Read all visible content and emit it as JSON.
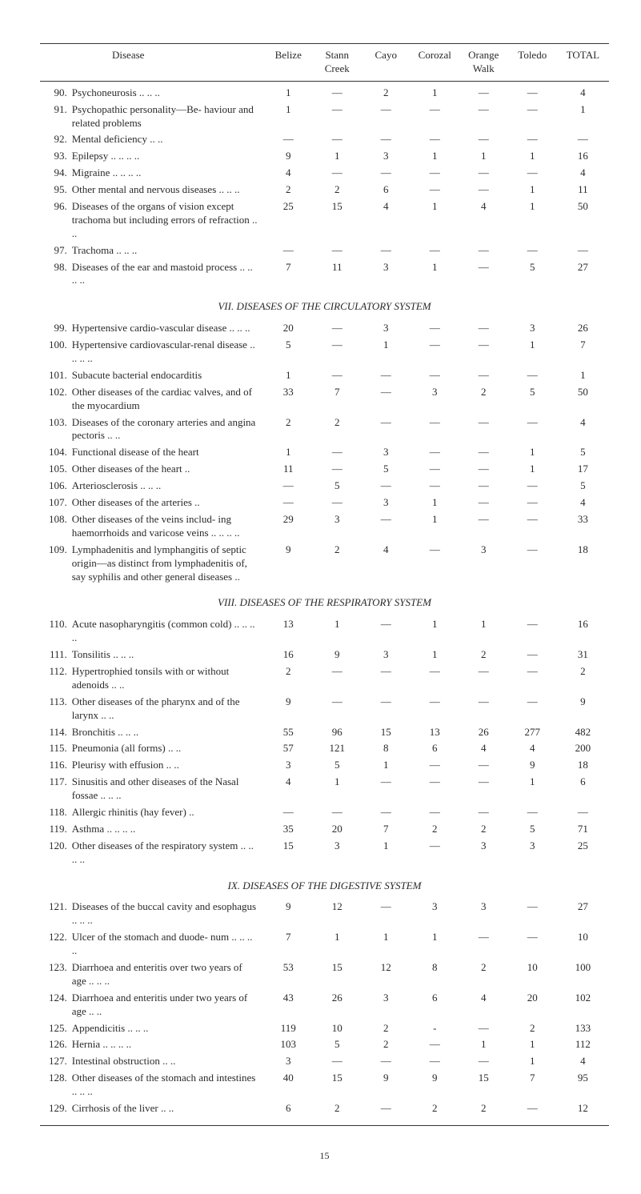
{
  "columns": [
    "Disease",
    "Belize",
    "Stann Creek",
    "Cayo",
    "Corozal",
    "Orange Walk",
    "Toledo",
    "TOTAL"
  ],
  "sections": [
    {
      "title": null,
      "rows": [
        {
          "n": "90.",
          "name": "Psychoneurosis ..  ..  ..",
          "v": [
            "1",
            "—",
            "2",
            "1",
            "—",
            "—",
            "4"
          ]
        },
        {
          "n": "91.",
          "name": "Psychopathic personality—Be- haviour and related problems",
          "v": [
            "1",
            "—",
            "—",
            "—",
            "—",
            "—",
            "1"
          ]
        },
        {
          "n": "92.",
          "name": "Mental deficiency   ..  ..",
          "v": [
            "—",
            "—",
            "—",
            "—",
            "—",
            "—",
            "—"
          ]
        },
        {
          "n": "93.",
          "name": "Epilepsy ..  ..  ..  ..",
          "v": [
            "9",
            "1",
            "3",
            "1",
            "1",
            "1",
            "16"
          ]
        },
        {
          "n": "94.",
          "name": "Migraine ..  ..  ..  ..",
          "v": [
            "4",
            "—",
            "—",
            "—",
            "—",
            "—",
            "4"
          ]
        },
        {
          "n": "95.",
          "name": "Other mental and nervous diseases    ..  ..  ..",
          "v": [
            "2",
            "2",
            "6",
            "—",
            "—",
            "1",
            "11"
          ]
        },
        {
          "n": "96.",
          "name": "Diseases of the organs of vision except trachoma but including errors of refraction  ..  ..",
          "v": [
            "25",
            "15",
            "4",
            "1",
            "4",
            "1",
            "50"
          ]
        },
        {
          "n": "97.",
          "name": "Trachoma    ..  ..  ..",
          "v": [
            "—",
            "—",
            "—",
            "—",
            "—",
            "—",
            "—"
          ]
        },
        {
          "n": "98.",
          "name": "Diseases of the ear and mastoid process ..  ..  ..  ..",
          "v": [
            "7",
            "11",
            "3",
            "1",
            "—",
            "5",
            "27"
          ]
        }
      ]
    },
    {
      "title": "VII. DISEASES OF THE CIRCULATORY SYSTEM",
      "rows": [
        {
          "n": "99.",
          "name": "Hypertensive cardio-vascular disease    ..  ..  ..",
          "v": [
            "20",
            "—",
            "3",
            "—",
            "—",
            "3",
            "26"
          ]
        },
        {
          "n": "100.",
          "name": "Hypertensive cardiovascular-renal disease ..  ..  ..  ..",
          "v": [
            "5",
            "—",
            "1",
            "—",
            "—",
            "1",
            "7"
          ]
        },
        {
          "n": "101.",
          "name": "Subacute bacterial endocarditis",
          "v": [
            "1",
            "—",
            "—",
            "—",
            "—",
            "—",
            "1"
          ]
        },
        {
          "n": "102.",
          "name": "Other diseases of the cardiac valves, and of the myocardium",
          "v": [
            "33",
            "7",
            "—",
            "3",
            "2",
            "5",
            "50"
          ]
        },
        {
          "n": "103.",
          "name": "Diseases of the coronary arteries and angina pectoris  ..  ..",
          "v": [
            "2",
            "2",
            "—",
            "—",
            "—",
            "—",
            "4"
          ]
        },
        {
          "n": "104.",
          "name": "Functional disease of the heart",
          "v": [
            "1",
            "—",
            "3",
            "—",
            "—",
            "1",
            "5"
          ]
        },
        {
          "n": "105.",
          "name": "Other diseases of the heart  ..",
          "v": [
            "11",
            "—",
            "5",
            "—",
            "—",
            "1",
            "17"
          ]
        },
        {
          "n": "106.",
          "name": "Arteriosclerosis ..  ..  ..",
          "v": [
            "—",
            "5",
            "—",
            "—",
            "—",
            "—",
            "5"
          ]
        },
        {
          "n": "107.",
          "name": "Other diseases of the arteries ..",
          "v": [
            "—",
            "—",
            "3",
            "1",
            "—",
            "—",
            "4"
          ]
        },
        {
          "n": "108.",
          "name": "Other diseases of the veins includ- ing haemorrhoids and varicose veins  ..  ..  ..  ..",
          "v": [
            "29",
            "3",
            "—",
            "1",
            "—",
            "—",
            "33"
          ]
        },
        {
          "n": "109.",
          "name": "Lymphadenitis and lymphangitis of septic origin—as distinct from lymphadenitis of, say syphilis and other general diseases  ..",
          "v": [
            "9",
            "2",
            "4",
            "—",
            "3",
            "—",
            "18"
          ]
        }
      ]
    },
    {
      "title": "VIII. DISEASES OF THE RESPIRATORY SYSTEM",
      "rows": [
        {
          "n": "110.",
          "name": "Acute nasopharyngitis (common cold)  ..  ..  ..  ..",
          "v": [
            "13",
            "1",
            "—",
            "1",
            "1",
            "—",
            "16"
          ]
        },
        {
          "n": "111.",
          "name": "Tonsilitis    ..  ..  ..",
          "v": [
            "16",
            "9",
            "3",
            "1",
            "2",
            "—",
            "31"
          ]
        },
        {
          "n": "112.",
          "name": "Hypertrophied tonsils with or without adenoids  ..  ..",
          "v": [
            "2",
            "—",
            "—",
            "—",
            "—",
            "—",
            "2"
          ]
        },
        {
          "n": "113.",
          "name": "Other diseases of the pharynx and of the larynx  ..  ..",
          "v": [
            "9",
            "—",
            "—",
            "—",
            "—",
            "—",
            "9"
          ]
        },
        {
          "n": "114.",
          "name": "Bronchitis  ..  ..  ..",
          "v": [
            "55",
            "96",
            "15",
            "13",
            "26",
            "277",
            "482"
          ]
        },
        {
          "n": "115.",
          "name": "Pneumonia (all forms) ..  ..",
          "v": [
            "57",
            "121",
            "8",
            "6",
            "4",
            "4",
            "200"
          ]
        },
        {
          "n": "116.",
          "name": "Pleurisy with effusion ..  ..",
          "v": [
            "3",
            "5",
            "1",
            "—",
            "—",
            "9",
            "18"
          ]
        },
        {
          "n": "117.",
          "name": "Sinusitis and other diseases of the Nasal fossae  ..  ..  ..",
          "v": [
            "4",
            "1",
            "—",
            "—",
            "—",
            "1",
            "6"
          ]
        },
        {
          "n": "118.",
          "name": "Allergic rhinitis (hay fever)  ..",
          "v": [
            "—",
            "—",
            "—",
            "—",
            "—",
            "—",
            "—"
          ]
        },
        {
          "n": "119.",
          "name": "Asthma ..  ..  ..  ..",
          "v": [
            "35",
            "20",
            "7",
            "2",
            "2",
            "5",
            "71"
          ]
        },
        {
          "n": "120.",
          "name": "Other diseases of the respiratory system ..  ..  ..  ..",
          "v": [
            "15",
            "3",
            "1",
            "—",
            "3",
            "3",
            "25"
          ]
        }
      ]
    },
    {
      "title": "IX. DISEASES OF THE DIGESTIVE SYSTEM",
      "rows": [
        {
          "n": "121.",
          "name": "Diseases of the buccal cavity and esophagus  ..  ..  ..",
          "v": [
            "9",
            "12",
            "—",
            "3",
            "3",
            "—",
            "27"
          ]
        },
        {
          "n": "122.",
          "name": "Ulcer of the stomach and duode- num  ..  ..  ..  ..",
          "v": [
            "7",
            "1",
            "1",
            "1",
            "—",
            "—",
            "10"
          ]
        },
        {
          "n": "123.",
          "name": "Diarrhoea and enteritis over two years of age  ..  ..  ..",
          "v": [
            "53",
            "15",
            "12",
            "8",
            "2",
            "10",
            "100"
          ]
        },
        {
          "n": "124.",
          "name": "Diarrhoea and enteritis under two years of age  ..  ..",
          "v": [
            "43",
            "26",
            "3",
            "6",
            "4",
            "20",
            "102"
          ]
        },
        {
          "n": "125.",
          "name": "Appendicitis  ..  ..  ..",
          "v": [
            "119",
            "10",
            "2",
            "-",
            "—",
            "2",
            "133"
          ]
        },
        {
          "n": "126.",
          "name": "Hernia ..   ..   ..   ..",
          "v": [
            "103",
            "5",
            "2",
            "—",
            "1",
            "1",
            "112"
          ]
        },
        {
          "n": "127.",
          "name": "Intestinal obstruction ..  ..",
          "v": [
            "3",
            "—",
            "—",
            "—",
            "—",
            "1",
            "4"
          ]
        },
        {
          "n": "128.",
          "name": "Other diseases of the stomach and intestines ..  ..  ..",
          "v": [
            "40",
            "15",
            "9",
            "9",
            "15",
            "7",
            "95"
          ]
        },
        {
          "n": "129.",
          "name": "Cirrhosis of the liver ..  ..",
          "v": [
            "6",
            "2",
            "—",
            "2",
            "2",
            "—",
            "12"
          ]
        }
      ]
    }
  ],
  "page_number": "15"
}
